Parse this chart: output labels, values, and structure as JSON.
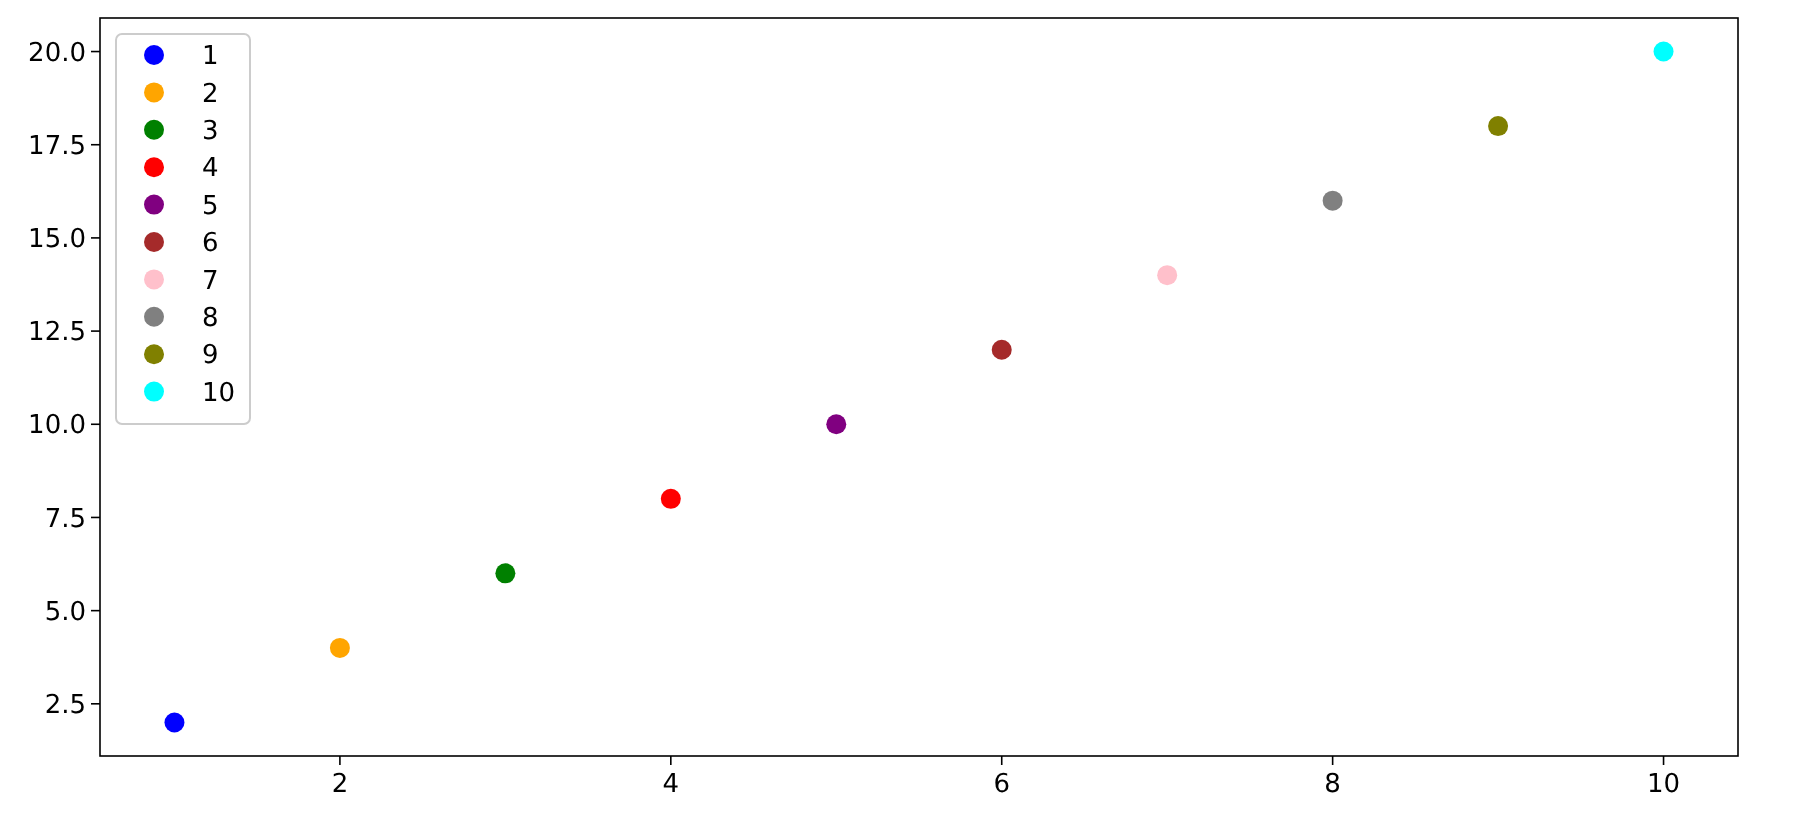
{
  "chart_data": {
    "type": "scatter",
    "series": [
      {
        "name": "1",
        "color": "#0000ff",
        "x": [
          1
        ],
        "values": [
          2
        ]
      },
      {
        "name": "2",
        "color": "#ffa500",
        "x": [
          2
        ],
        "values": [
          4
        ]
      },
      {
        "name": "3",
        "color": "#008000",
        "x": [
          3
        ],
        "values": [
          6
        ]
      },
      {
        "name": "4",
        "color": "#ff0000",
        "x": [
          4
        ],
        "values": [
          8
        ]
      },
      {
        "name": "5",
        "color": "#800080",
        "x": [
          5
        ],
        "values": [
          10
        ]
      },
      {
        "name": "6",
        "color": "#a52a2a",
        "x": [
          6
        ],
        "values": [
          12
        ]
      },
      {
        "name": "7",
        "color": "#ffc0cb",
        "x": [
          7
        ],
        "values": [
          14
        ]
      },
      {
        "name": "8",
        "color": "#808080",
        "x": [
          8
        ],
        "values": [
          16
        ]
      },
      {
        "name": "9",
        "color": "#808000",
        "x": [
          9
        ],
        "values": [
          18
        ]
      },
      {
        "name": "10",
        "color": "#00ffff",
        "x": [
          10
        ],
        "values": [
          20
        ]
      }
    ],
    "xlim": [
      0.55,
      10.45
    ],
    "xticks": [
      2,
      4,
      6,
      8,
      10
    ],
    "ylim": [
      1.1,
      20.9
    ],
    "yticks": [
      2.5,
      {
        "value": 5,
        "label": "5.0"
      },
      7.5,
      {
        "value": 10,
        "label": "10.0"
      },
      12.5,
      {
        "value": 15,
        "label": "15.0"
      },
      17.5,
      {
        "value": 20,
        "label": "20.0"
      }
    ],
    "legend": "top left",
    "marker": "circle",
    "grid": false
  }
}
